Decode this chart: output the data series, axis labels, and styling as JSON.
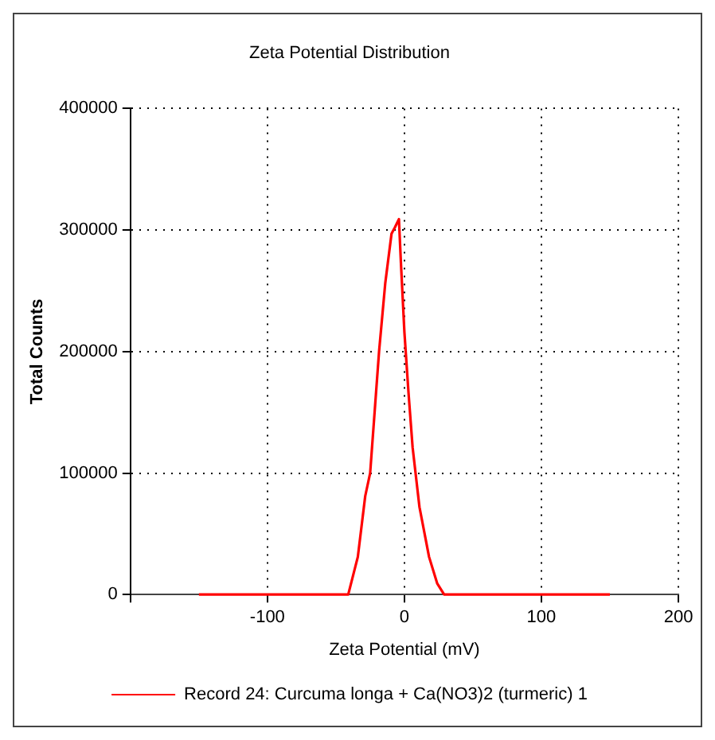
{
  "chart_data": {
    "type": "line",
    "title": "Zeta Potential Distribution",
    "xlabel": "Zeta Potential (mV)",
    "ylabel": "Total Counts",
    "xlim": [
      -200,
      200
    ],
    "xticks": [
      {
        "value": -200,
        "label": null
      },
      -100,
      0,
      100,
      200
    ],
    "ylim": [
      0,
      400000
    ],
    "yticks": [
      0,
      100000,
      200000,
      300000,
      400000
    ],
    "grid": true,
    "legend": "bottom",
    "marker": "none",
    "line_style": "solid",
    "series": [
      {
        "name": "Record 24: Curcuma longa + Ca(NO3)2 (turmeric) 1",
        "color": "#ff0000",
        "x": [
          -150,
          -41,
          -34,
          -28.6,
          -25,
          -18.5,
          -14,
          -9.4,
          -7,
          -4,
          -2.5,
          0,
          3,
          6,
          11,
          18,
          24,
          29,
          150
        ],
        "values": [
          0,
          0,
          31000,
          81000,
          100000,
          200000,
          256000,
          297000,
          302000,
          309000,
          272000,
          216000,
          166000,
          121000,
          72000,
          31000,
          9000,
          0,
          0
        ]
      }
    ]
  }
}
